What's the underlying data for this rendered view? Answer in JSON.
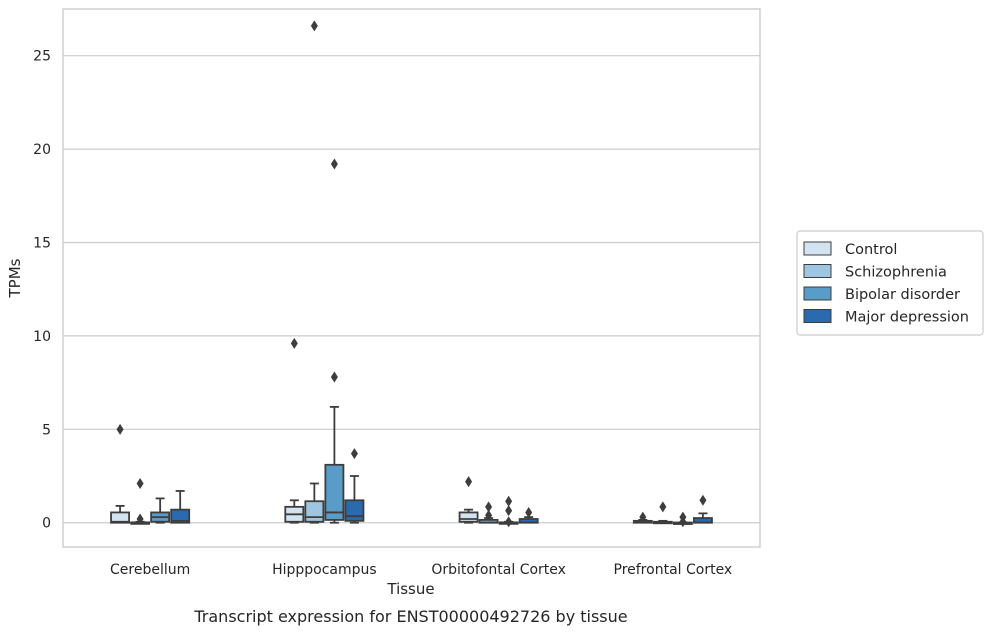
{
  "caption": "Transcript expression for ENST00000492726 by tissue",
  "chart_data": {
    "type": "box",
    "xlabel": "Tissue",
    "ylabel": "TPMs",
    "ylim": [
      -1.3,
      27.5
    ],
    "yticks": [
      0,
      5,
      10,
      15,
      20,
      25
    ],
    "grid": "horizontal",
    "legend_position": "right",
    "categories": [
      "Cerebellum",
      "Hipppocampus",
      "Orbitofontal Cortex",
      "Prefrontal Cortex"
    ],
    "series": [
      {
        "name": "Control",
        "color": "#d4e3f2",
        "boxes": [
          {
            "whislo": 0,
            "q1": 0,
            "med": 0.05,
            "q3": 0.55,
            "whishi": 0.9,
            "fliers": [
              5.0
            ]
          },
          {
            "whislo": 0,
            "q1": 0.05,
            "med": 0.45,
            "q3": 0.85,
            "whishi": 1.2,
            "fliers": [
              9.6
            ]
          },
          {
            "whislo": 0,
            "q1": 0.05,
            "med": 0.2,
            "q3": 0.55,
            "whishi": 0.7,
            "fliers": [
              2.2
            ]
          },
          {
            "whislo": 0,
            "q1": 0,
            "med": 0.02,
            "q3": 0.1,
            "whishi": 0.15,
            "fliers": [
              0.3
            ]
          }
        ]
      },
      {
        "name": "Schizophrenia",
        "color": "#9ec6e0",
        "boxes": [
          {
            "whislo": 0,
            "q1": 0,
            "med": 0,
            "q3": 0.02,
            "whishi": 0.05,
            "fliers": [
              2.1,
              0.2
            ]
          },
          {
            "whislo": 0,
            "q1": 0.05,
            "med": 0.3,
            "q3": 1.15,
            "whishi": 2.1,
            "fliers": [
              26.6
            ]
          },
          {
            "whislo": 0,
            "q1": 0,
            "med": 0.02,
            "q3": 0.15,
            "whishi": 0.25,
            "fliers": [
              0.85,
              0.4
            ]
          },
          {
            "whislo": 0,
            "q1": 0,
            "med": 0,
            "q3": 0.05,
            "whishi": 0.1,
            "fliers": [
              0.85
            ]
          }
        ]
      },
      {
        "name": "Bipolar disorder",
        "color": "#5a9cc8",
        "boxes": [
          {
            "whislo": 0,
            "q1": 0.05,
            "med": 0.3,
            "q3": 0.55,
            "whishi": 1.3,
            "fliers": []
          },
          {
            "whislo": 0,
            "q1": 0.15,
            "med": 0.55,
            "q3": 3.1,
            "whishi": 6.2,
            "fliers": [
              19.2,
              7.8
            ]
          },
          {
            "whislo": 0,
            "q1": 0,
            "med": 0,
            "q3": 0.02,
            "whishi": 0.05,
            "fliers": [
              1.15,
              0.65,
              0.05
            ]
          },
          {
            "whislo": 0,
            "q1": 0,
            "med": 0,
            "q3": 0.01,
            "whishi": 0.02,
            "fliers": [
              0.3,
              0.05
            ]
          }
        ]
      },
      {
        "name": "Major depression",
        "color": "#2a6aae",
        "boxes": [
          {
            "whislo": 0,
            "q1": 0,
            "med": 0.1,
            "q3": 0.7,
            "whishi": 1.7,
            "fliers": []
          },
          {
            "whislo": 0,
            "q1": 0.1,
            "med": 0.35,
            "q3": 1.2,
            "whishi": 2.5,
            "fliers": [
              3.7
            ]
          },
          {
            "whislo": 0,
            "q1": 0,
            "med": 0.02,
            "q3": 0.2,
            "whishi": 0.3,
            "fliers": [
              0.55
            ]
          },
          {
            "whislo": 0,
            "q1": 0,
            "med": 0.02,
            "q3": 0.25,
            "whishi": 0.5,
            "fliers": [
              1.2
            ]
          }
        ]
      }
    ]
  }
}
